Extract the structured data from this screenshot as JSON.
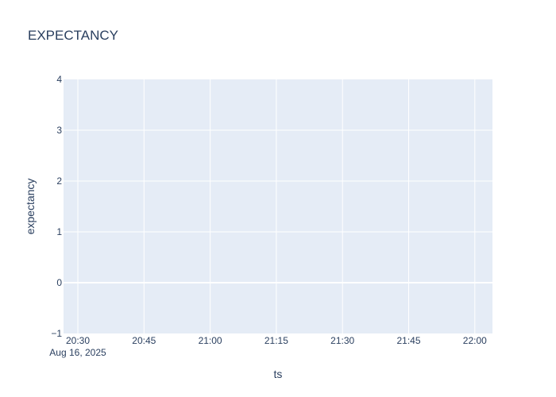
{
  "chart_data": {
    "type": "line",
    "title": "EXPECTANCY",
    "xlabel": "ts",
    "ylabel": "expectancy",
    "x_ticks": [
      "20:30",
      "20:45",
      "21:00",
      "21:15",
      "21:30",
      "21:45",
      "22:00"
    ],
    "x_tick_date": "Aug 16, 2025",
    "y_ticks": [
      "−1",
      "0",
      "1",
      "2",
      "3",
      "4"
    ],
    "ylim": [
      -1,
      4
    ],
    "grid": true,
    "series": [],
    "colors": {
      "plot_bg": "#e5ecf6",
      "grid": "#ffffff",
      "text": "#2a3f5f",
      "paper_bg": "#ffffff"
    }
  }
}
